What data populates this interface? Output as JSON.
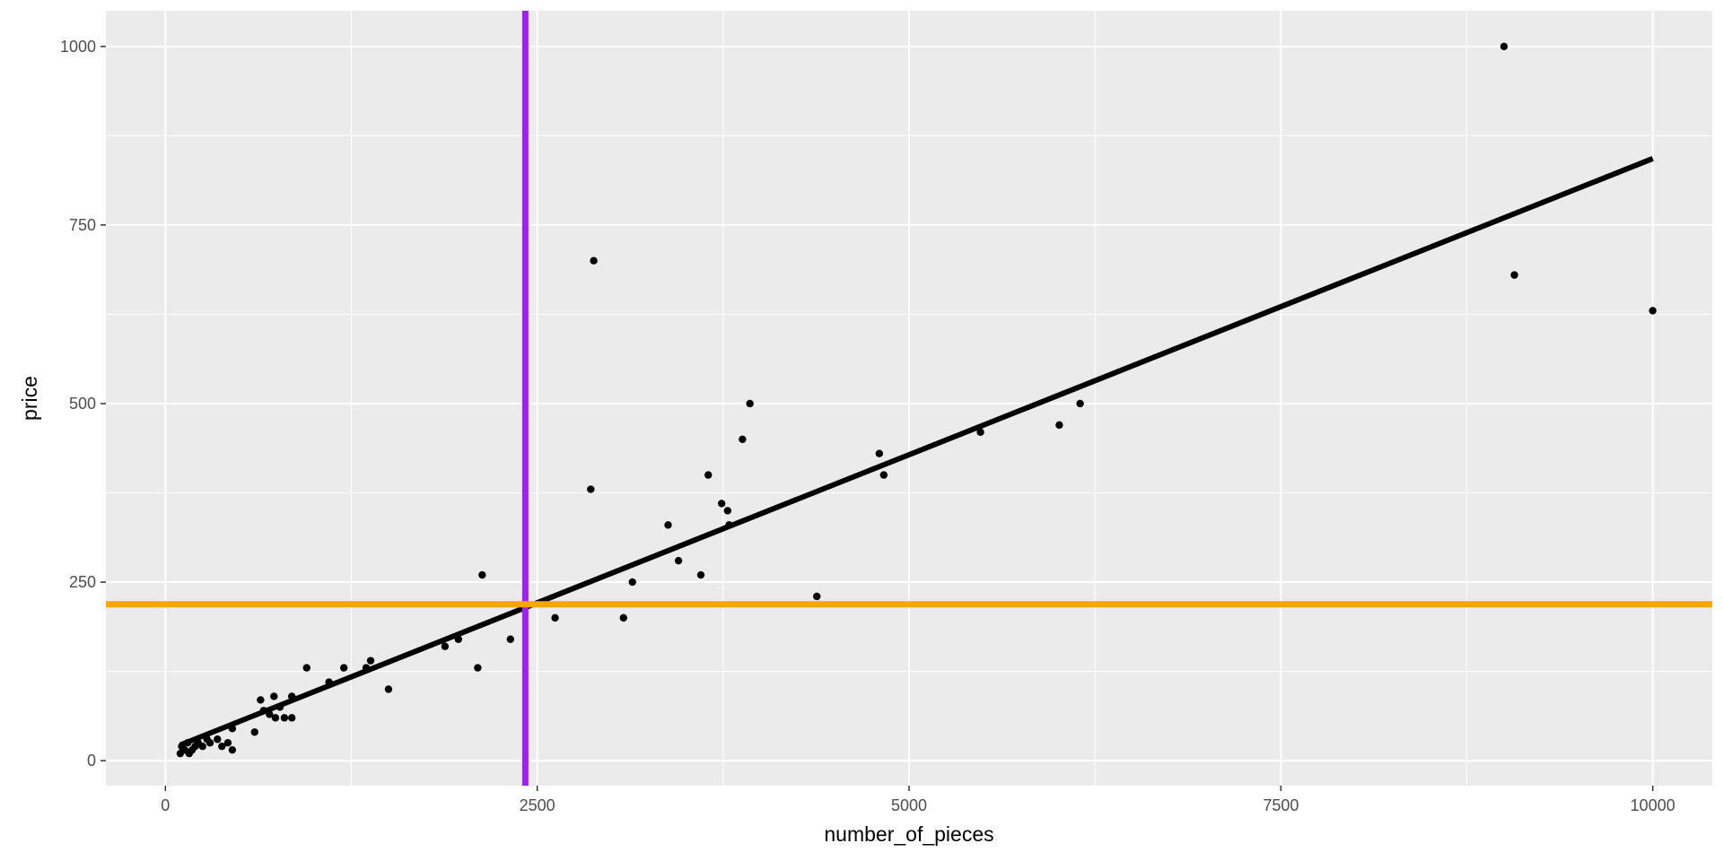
{
  "chart_data": {
    "type": "scatter",
    "xlabel": "number_of_pieces",
    "ylabel": "price",
    "xlim": [
      -400,
      10400
    ],
    "ylim": [
      -35,
      1050
    ],
    "x_ticks": [
      0,
      2500,
      5000,
      7500,
      10000
    ],
    "x_tick_labels": [
      "0",
      "2500",
      "5000",
      "7500",
      "10000"
    ],
    "y_ticks": [
      0,
      250,
      500,
      750,
      1000
    ],
    "y_tick_labels": [
      "0",
      "250",
      "500",
      "750",
      "1000"
    ],
    "grid": true,
    "background_color": "#ebebeb",
    "grid_color": "#ffffff",
    "point_color": "#000000",
    "points": [
      {
        "x": 100,
        "y": 10
      },
      {
        "x": 110,
        "y": 20
      },
      {
        "x": 130,
        "y": 15
      },
      {
        "x": 150,
        "y": 25
      },
      {
        "x": 160,
        "y": 10
      },
      {
        "x": 180,
        "y": 15
      },
      {
        "x": 200,
        "y": 20
      },
      {
        "x": 220,
        "y": 25
      },
      {
        "x": 250,
        "y": 20
      },
      {
        "x": 280,
        "y": 30
      },
      {
        "x": 300,
        "y": 25
      },
      {
        "x": 350,
        "y": 30
      },
      {
        "x": 380,
        "y": 20
      },
      {
        "x": 420,
        "y": 25
      },
      {
        "x": 450,
        "y": 15
      },
      {
        "x": 450,
        "y": 45
      },
      {
        "x": 600,
        "y": 40
      },
      {
        "x": 640,
        "y": 85
      },
      {
        "x": 660,
        "y": 70
      },
      {
        "x": 700,
        "y": 65
      },
      {
        "x": 730,
        "y": 90
      },
      {
        "x": 740,
        "y": 60
      },
      {
        "x": 770,
        "y": 75
      },
      {
        "x": 800,
        "y": 60
      },
      {
        "x": 850,
        "y": 90
      },
      {
        "x": 850,
        "y": 60
      },
      {
        "x": 950,
        "y": 130
      },
      {
        "x": 1100,
        "y": 110
      },
      {
        "x": 1200,
        "y": 130
      },
      {
        "x": 1350,
        "y": 130
      },
      {
        "x": 1380,
        "y": 140
      },
      {
        "x": 1500,
        "y": 100
      },
      {
        "x": 1880,
        "y": 160
      },
      {
        "x": 1970,
        "y": 170
      },
      {
        "x": 2100,
        "y": 130
      },
      {
        "x": 2130,
        "y": 260
      },
      {
        "x": 2320,
        "y": 170
      },
      {
        "x": 2620,
        "y": 200
      },
      {
        "x": 2860,
        "y": 380
      },
      {
        "x": 2880,
        "y": 700
      },
      {
        "x": 3080,
        "y": 200
      },
      {
        "x": 3140,
        "y": 250
      },
      {
        "x": 3380,
        "y": 330
      },
      {
        "x": 3450,
        "y": 280
      },
      {
        "x": 3600,
        "y": 260
      },
      {
        "x": 3650,
        "y": 400
      },
      {
        "x": 3740,
        "y": 360
      },
      {
        "x": 3780,
        "y": 350
      },
      {
        "x": 3790,
        "y": 330
      },
      {
        "x": 3880,
        "y": 450
      },
      {
        "x": 3930,
        "y": 500
      },
      {
        "x": 4380,
        "y": 230
      },
      {
        "x": 4800,
        "y": 430
      },
      {
        "x": 4830,
        "y": 400
      },
      {
        "x": 5480,
        "y": 460
      },
      {
        "x": 6010,
        "y": 470
      },
      {
        "x": 6150,
        "y": 500
      },
      {
        "x": 9000,
        "y": 1000
      },
      {
        "x": 9070,
        "y": 680
      },
      {
        "x": 10000,
        "y": 630
      }
    ],
    "fit_line": {
      "color": "#000000",
      "start": {
        "x": 100,
        "y": 22
      },
      "end": {
        "x": 10000,
        "y": 843
      }
    },
    "reference_lines": {
      "vertical": {
        "x": 2420,
        "color": "#a020f0"
      },
      "horizontal": {
        "y": 219,
        "color": "#ffa500"
      }
    }
  }
}
